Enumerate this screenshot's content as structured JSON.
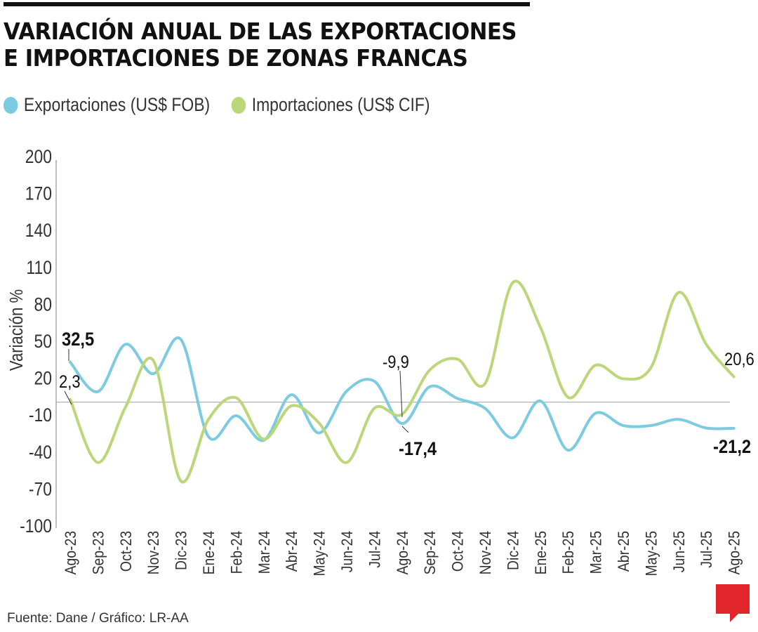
{
  "title_line1": "VARIACIÓN ANUAL DE LAS EXPORTACIONES",
  "title_line2": "E IMPORTACIONES DE ZONAS FRANCAS",
  "source": "Fuente: Dane / Gráfico: LR-AA",
  "logo": "LR",
  "chart_data": {
    "type": "line",
    "title": "VARIACIÓN ANUAL DE LAS EXPORTACIONES E IMPORTACIONES DE ZONAS FRANCAS",
    "ylabel": "Variación %",
    "xlabel": "",
    "ylim": [
      -100,
      200
    ],
    "yticks": [
      200,
      170,
      140,
      110,
      80,
      50,
      20,
      -10,
      -40,
      -70,
      -100
    ],
    "grid": false,
    "legend": "top-left",
    "categories": [
      "Ago-23",
      "Sep-23",
      "Oct-23",
      "Nov-23",
      "Dic-23",
      "Ene-24",
      "Feb-24",
      "Mar-24",
      "Abr-24",
      "May-24",
      "Jun-24",
      "Jul-24",
      "Ago-24",
      "Sep-24",
      "Oct-24",
      "Nov-24",
      "Dic-24",
      "Ene-25",
      "Feb-25",
      "Mar-25",
      "Abr-25",
      "May-25",
      "Jun-25",
      "Jul-25",
      "Ago-25"
    ],
    "series": [
      {
        "name": "Exportaciones (US$ FOB)",
        "color": "#7ccbe0",
        "values": [
          32.5,
          8.5,
          47,
          23,
          51,
          -28,
          -11,
          -31,
          6,
          -25,
          9,
          17,
          -17.4,
          12.5,
          3,
          -5,
          -29,
          1,
          -39,
          -9,
          -19,
          -19,
          -14,
          -21,
          -21.2
        ]
      },
      {
        "name": "Importaciones  (US$ CIF)",
        "color": "#bcd67a",
        "values": [
          2.3,
          -49,
          -4,
          34,
          -64,
          -14,
          3.5,
          -30,
          -3,
          -17,
          -49,
          -5,
          -9.9,
          26,
          35,
          15,
          97,
          61,
          4,
          30,
          19,
          28,
          89,
          47,
          20.6
        ]
      }
    ],
    "annotations": [
      {
        "series": 0,
        "index": 0,
        "text": "32,5",
        "bold": true
      },
      {
        "series": 1,
        "index": 0,
        "text": "2,3",
        "bold": false
      },
      {
        "series": 1,
        "index": 12,
        "text": "-9,9",
        "bold": false
      },
      {
        "series": 0,
        "index": 12,
        "text": "-17,4",
        "bold": true
      },
      {
        "series": 1,
        "index": 24,
        "text": "20,6",
        "bold": false
      },
      {
        "series": 0,
        "index": 24,
        "text": "-21,2",
        "bold": true
      }
    ]
  }
}
